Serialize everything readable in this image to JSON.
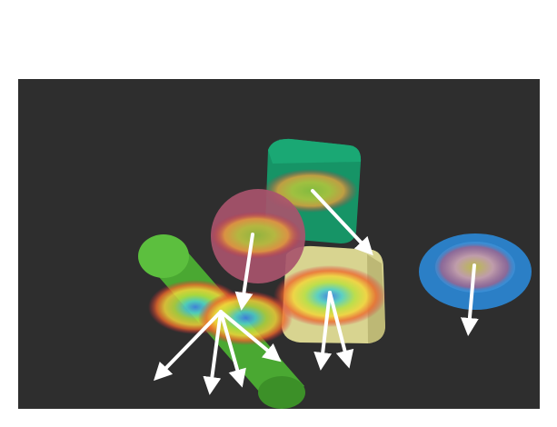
{
  "scene": {
    "background_color": "#ffffff",
    "panel_color": "#2e2e2e",
    "objects": [
      {
        "name": "green-cylinder",
        "color": "#4aa832"
      },
      {
        "name": "teal-cube",
        "color": "#169466"
      },
      {
        "name": "pink-sphere",
        "color": "#a8546c"
      },
      {
        "name": "beige-block",
        "color": "#d8d490"
      },
      {
        "name": "blue-ring",
        "color": "#2b7fc6"
      }
    ],
    "arrow_color": "#ffffff"
  }
}
